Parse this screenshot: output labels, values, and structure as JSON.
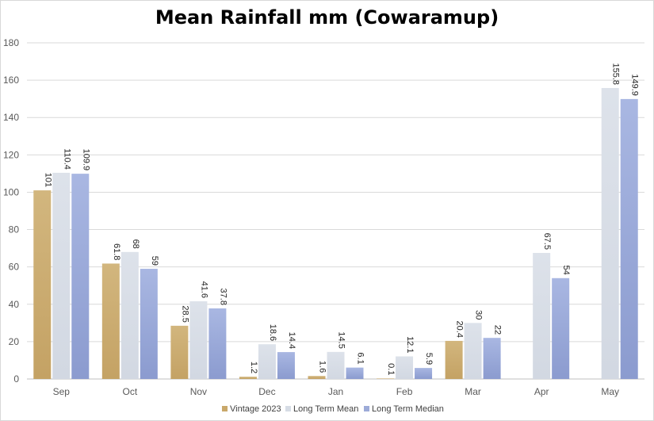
{
  "chart_data": {
    "type": "bar",
    "title": "Mean Rainfall mm (Cowaramup)",
    "xlabel": "",
    "ylabel": "",
    "ylim": [
      0,
      180
    ],
    "yticks": [
      0,
      20,
      40,
      60,
      80,
      100,
      120,
      140,
      160,
      180
    ],
    "categories": [
      "Sep",
      "Oct",
      "Nov",
      "Dec",
      "Jan",
      "Feb",
      "Mar",
      "Apr",
      "May"
    ],
    "series": [
      {
        "name": "Vintage 2023",
        "color": "#C9A86A",
        "values": [
          101,
          61.8,
          28.5,
          1.2,
          1.6,
          0.1,
          20.4,
          null,
          null
        ],
        "labels": [
          "101",
          "61.8",
          "28.5",
          "1.2",
          "1.6",
          "0.1",
          "20.4",
          null,
          null
        ]
      },
      {
        "name": "Long Term Mean",
        "color": "#D6DCE5",
        "values": [
          110.4,
          68,
          41.6,
          18.6,
          14.5,
          12.1,
          30,
          67.5,
          155.8
        ],
        "labels": [
          "110.4",
          "68",
          "41.6",
          "18.6",
          "14.5",
          "12.1",
          "30",
          "67.5",
          "155.8"
        ]
      },
      {
        "name": "Long Term Median",
        "color": "#9DABD8",
        "values": [
          109.9,
          59,
          37.8,
          14.4,
          6.1,
          5.9,
          22,
          54,
          149.9
        ],
        "labels": [
          "109.9",
          "59",
          "37.8",
          "14.4",
          "6.1",
          "5.9",
          "22",
          "54",
          "149.9"
        ]
      }
    ],
    "grid": true,
    "legend": "bottom-center"
  }
}
